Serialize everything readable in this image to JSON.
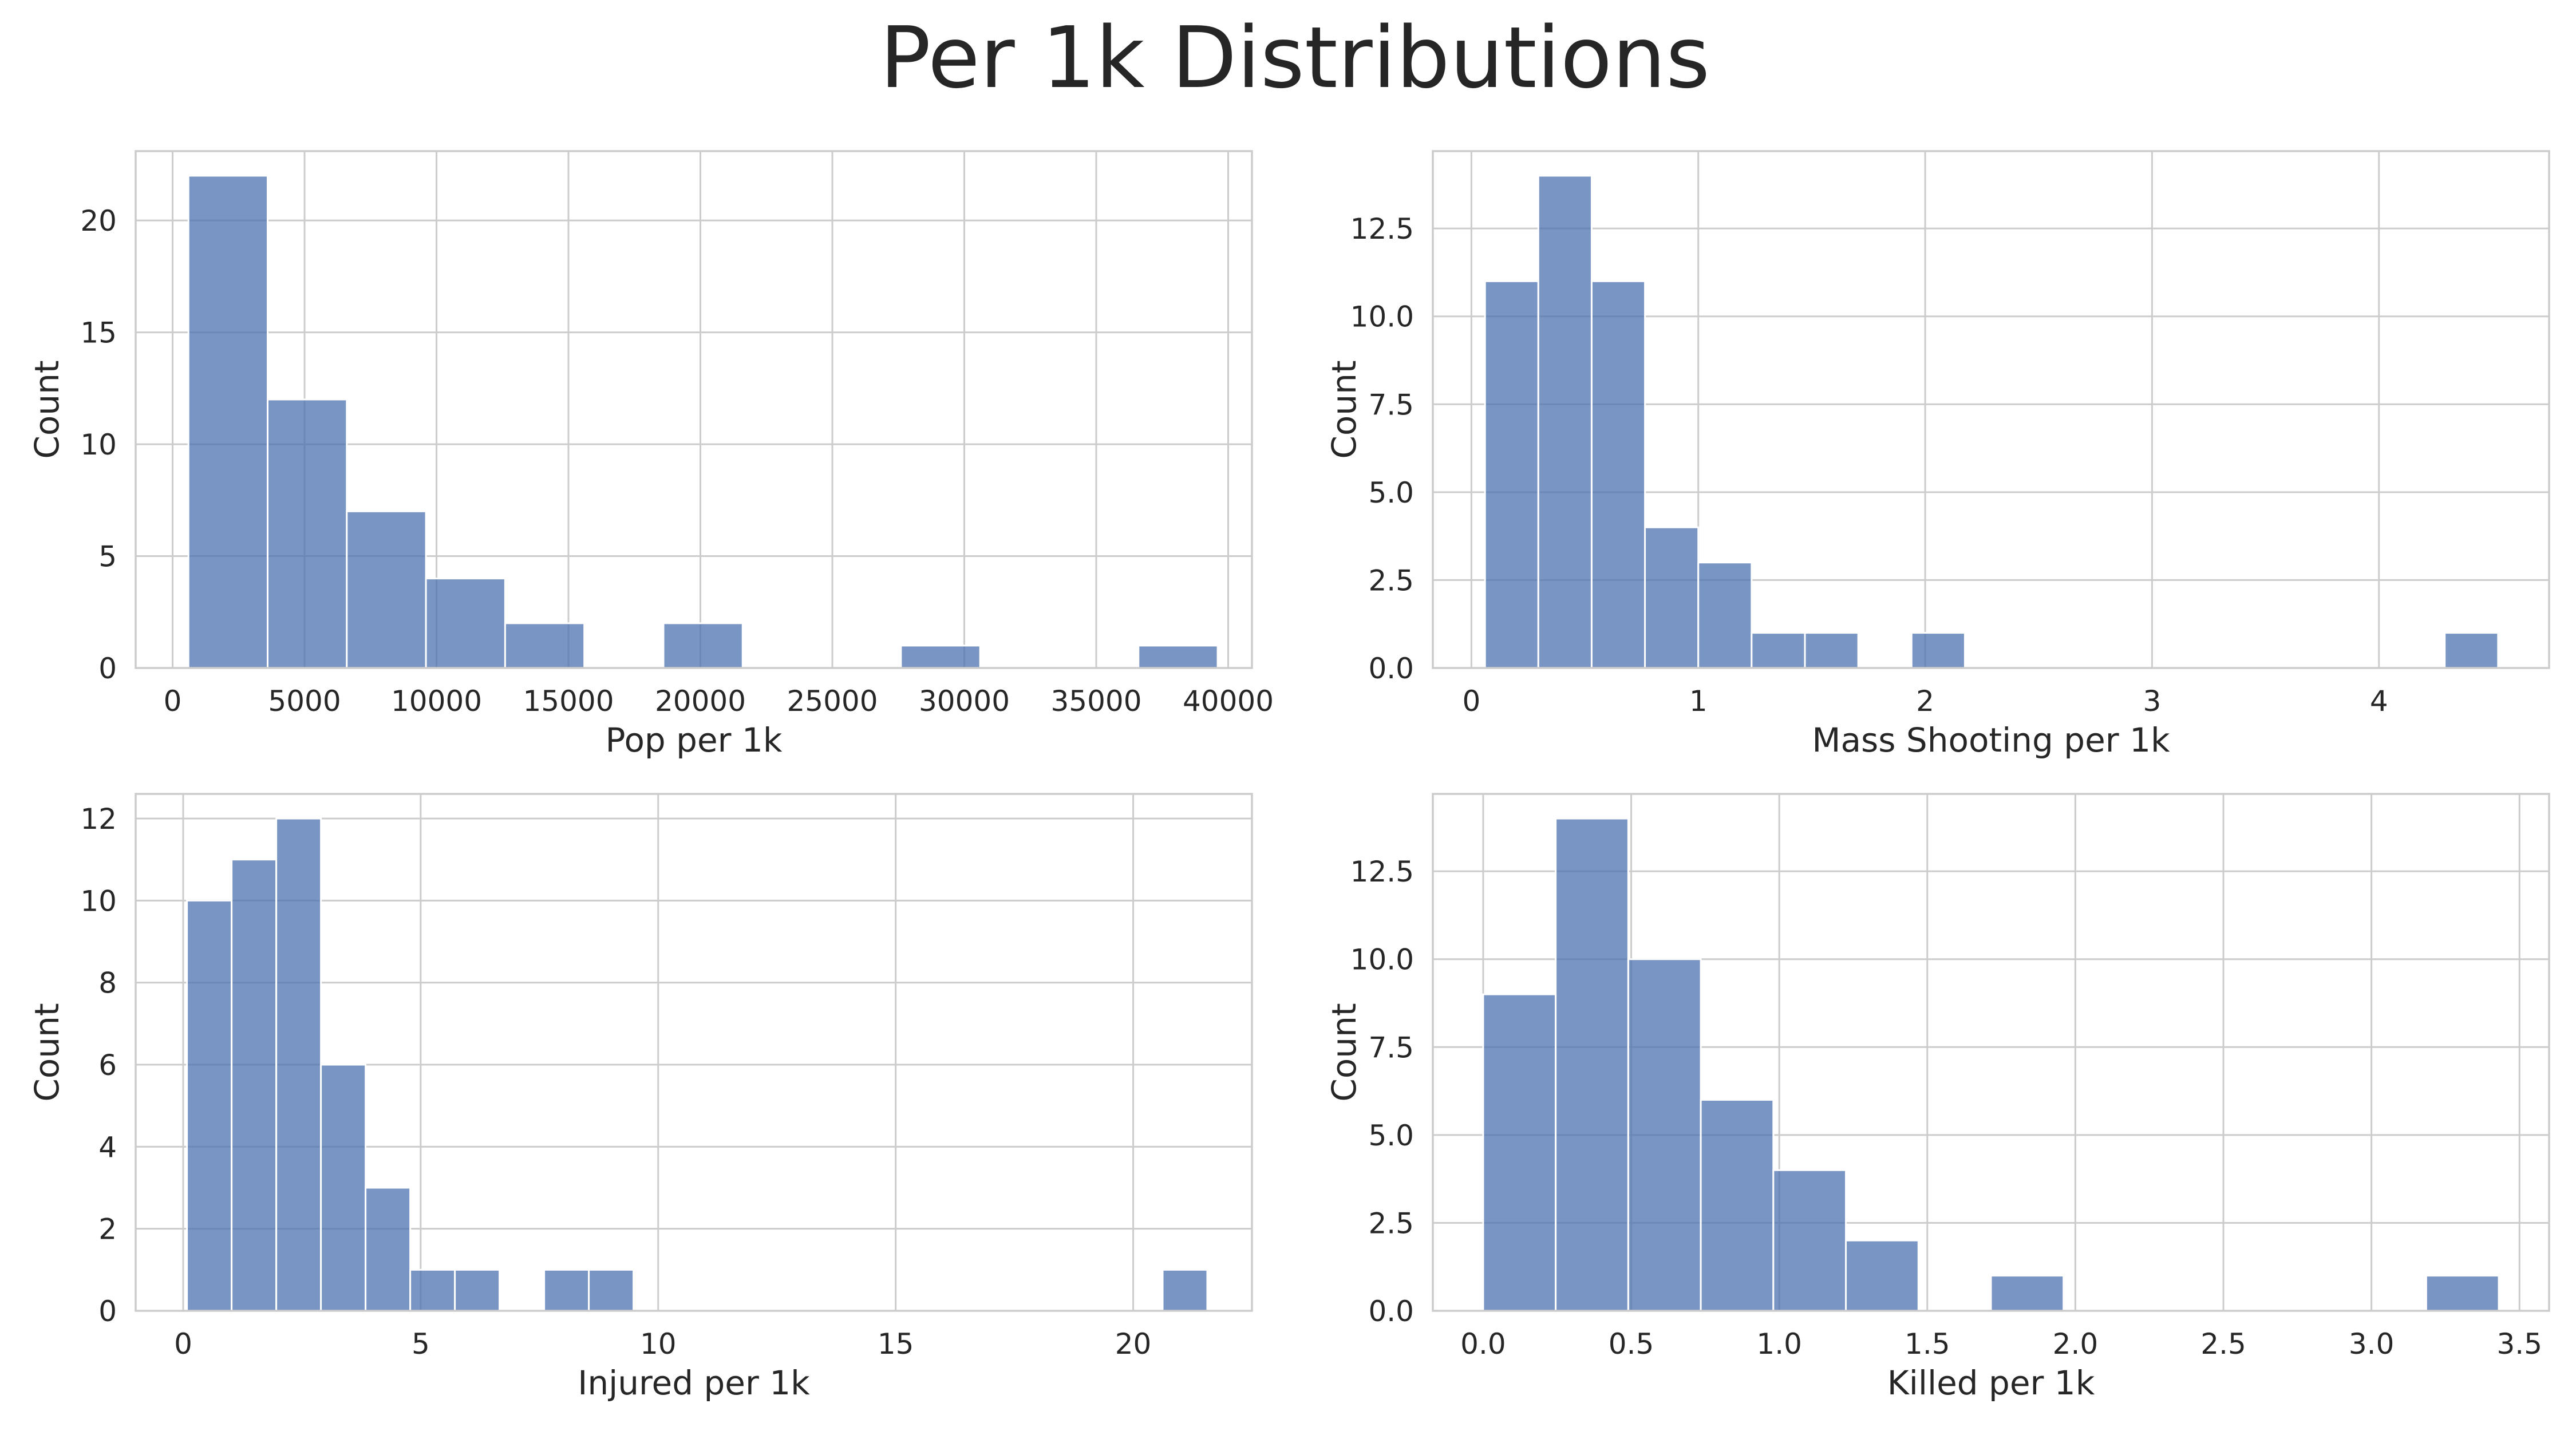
{
  "figure_title": "Per 1k Distributions",
  "colors": {
    "bar": "#4c72b0",
    "grid": "#cccccc",
    "spine": "#cccccc",
    "background": "#ffffff",
    "text": "#262626"
  },
  "chart_data": [
    {
      "type": "bar",
      "name": "pop-per-1k",
      "title": "",
      "xlabel": "Pop per 1k",
      "ylabel": "Count",
      "xlim": [
        -1400,
        40900
      ],
      "ylim": [
        0,
        23.1
      ],
      "xticks": [
        0,
        5000,
        10000,
        15000,
        20000,
        25000,
        30000,
        35000,
        40000
      ],
      "xtick_labels": [
        "0",
        "5000",
        "10000",
        "15000",
        "20000",
        "25000",
        "30000",
        "35000",
        "40000"
      ],
      "yticks": [
        0,
        5,
        10,
        15,
        20
      ],
      "ytick_labels": [
        "0",
        "5",
        "10",
        "15",
        "20"
      ],
      "bins": [
        {
          "x0": 600,
          "x1": 3600,
          "count": 22
        },
        {
          "x0": 3600,
          "x1": 6600,
          "count": 12
        },
        {
          "x0": 6600,
          "x1": 9600,
          "count": 7
        },
        {
          "x0": 9600,
          "x1": 12600,
          "count": 4
        },
        {
          "x0": 12600,
          "x1": 15600,
          "count": 2
        },
        {
          "x0": 15600,
          "x1": 18600,
          "count": 0
        },
        {
          "x0": 18600,
          "x1": 21600,
          "count": 2
        },
        {
          "x0": 21600,
          "x1": 24600,
          "count": 0
        },
        {
          "x0": 24600,
          "x1": 27600,
          "count": 0
        },
        {
          "x0": 27600,
          "x1": 30600,
          "count": 1
        },
        {
          "x0": 30600,
          "x1": 33600,
          "count": 0
        },
        {
          "x0": 33600,
          "x1": 36600,
          "count": 0
        },
        {
          "x0": 36600,
          "x1": 39600,
          "count": 1
        }
      ]
    },
    {
      "type": "bar",
      "name": "mass-shooting-per-1k",
      "title": "",
      "xlabel": "Mass Shooting per 1k",
      "ylabel": "Count",
      "xlim": [
        -0.17,
        4.75
      ],
      "ylim": [
        0,
        14.7
      ],
      "xticks": [
        0,
        1,
        2,
        3,
        4
      ],
      "xtick_labels": [
        "0",
        "1",
        "2",
        "3",
        "4"
      ],
      "yticks": [
        0,
        2.5,
        5,
        7.5,
        10,
        12.5
      ],
      "ytick_labels": [
        "0.0",
        "2.5",
        "5.0",
        "7.5",
        "10.0",
        "12.5"
      ],
      "bins": [
        {
          "x0": 0.06,
          "x1": 0.295,
          "count": 11
        },
        {
          "x0": 0.295,
          "x1": 0.53,
          "count": 14
        },
        {
          "x0": 0.53,
          "x1": 0.765,
          "count": 11
        },
        {
          "x0": 0.765,
          "x1": 1.0,
          "count": 4
        },
        {
          "x0": 1.0,
          "x1": 1.235,
          "count": 3
        },
        {
          "x0": 1.235,
          "x1": 1.47,
          "count": 1
        },
        {
          "x0": 1.47,
          "x1": 1.705,
          "count": 1
        },
        {
          "x0": 1.705,
          "x1": 1.94,
          "count": 0
        },
        {
          "x0": 1.94,
          "x1": 2.175,
          "count": 1
        },
        {
          "x0": 2.175,
          "x1": 2.41,
          "count": 0
        },
        {
          "x0": 2.41,
          "x1": 2.645,
          "count": 0
        },
        {
          "x0": 2.645,
          "x1": 2.88,
          "count": 0
        },
        {
          "x0": 2.88,
          "x1": 3.115,
          "count": 0
        },
        {
          "x0": 3.115,
          "x1": 3.35,
          "count": 0
        },
        {
          "x0": 3.35,
          "x1": 3.585,
          "count": 0
        },
        {
          "x0": 3.585,
          "x1": 3.82,
          "count": 0
        },
        {
          "x0": 3.82,
          "x1": 4.055,
          "count": 0
        },
        {
          "x0": 4.055,
          "x1": 4.29,
          "count": 0
        },
        {
          "x0": 4.29,
          "x1": 4.525,
          "count": 1
        }
      ]
    },
    {
      "type": "bar",
      "name": "injured-per-1k",
      "title": "",
      "xlabel": "Injured per 1k",
      "ylabel": "Count",
      "xlim": [
        -1.0,
        22.5
      ],
      "ylim": [
        0,
        12.6
      ],
      "xticks": [
        0,
        5,
        10,
        15,
        20
      ],
      "xtick_labels": [
        "0",
        "5",
        "10",
        "15",
        "20"
      ],
      "yticks": [
        0,
        2,
        4,
        6,
        8,
        10,
        12
      ],
      "ytick_labels": [
        "0",
        "2",
        "4",
        "6",
        "8",
        "10",
        "12"
      ],
      "bins": [
        {
          "x0": 0.08,
          "x1": 1.02,
          "count": 10
        },
        {
          "x0": 1.02,
          "x1": 1.96,
          "count": 11
        },
        {
          "x0": 1.96,
          "x1": 2.9,
          "count": 12
        },
        {
          "x0": 2.9,
          "x1": 3.84,
          "count": 6
        },
        {
          "x0": 3.84,
          "x1": 4.78,
          "count": 3
        },
        {
          "x0": 4.78,
          "x1": 5.72,
          "count": 1
        },
        {
          "x0": 5.72,
          "x1": 6.66,
          "count": 1
        },
        {
          "x0": 6.66,
          "x1": 7.6,
          "count": 0
        },
        {
          "x0": 7.6,
          "x1": 8.54,
          "count": 1
        },
        {
          "x0": 8.54,
          "x1": 9.48,
          "count": 1
        },
        {
          "x0": 20.62,
          "x1": 21.56,
          "count": 1
        }
      ]
    },
    {
      "type": "bar",
      "name": "killed-per-1k",
      "title": "",
      "xlabel": "Killed per 1k",
      "ylabel": "Count",
      "xlim": [
        -0.17,
        3.6
      ],
      "ylim": [
        0,
        14.7
      ],
      "xticks": [
        0,
        0.5,
        1,
        1.5,
        2,
        2.5,
        3,
        3.5
      ],
      "xtick_labels": [
        "0.0",
        "0.5",
        "1.0",
        "1.5",
        "2.0",
        "2.5",
        "3.0",
        "3.5"
      ],
      "yticks": [
        0,
        2.5,
        5,
        7.5,
        10,
        12.5
      ],
      "ytick_labels": [
        "0.0",
        "2.5",
        "5.0",
        "7.5",
        "10.0",
        "12.5"
      ],
      "bins": [
        {
          "x0": 0.0,
          "x1": 0.245,
          "count": 9
        },
        {
          "x0": 0.245,
          "x1": 0.49,
          "count": 14
        },
        {
          "x0": 0.49,
          "x1": 0.735,
          "count": 10
        },
        {
          "x0": 0.735,
          "x1": 0.98,
          "count": 6
        },
        {
          "x0": 0.98,
          "x1": 1.225,
          "count": 4
        },
        {
          "x0": 1.225,
          "x1": 1.47,
          "count": 2
        },
        {
          "x0": 1.47,
          "x1": 1.715,
          "count": 0
        },
        {
          "x0": 1.715,
          "x1": 1.96,
          "count": 1
        },
        {
          "x0": 1.96,
          "x1": 2.205,
          "count": 0
        },
        {
          "x0": 2.205,
          "x1": 2.45,
          "count": 0
        },
        {
          "x0": 2.45,
          "x1": 2.695,
          "count": 0
        },
        {
          "x0": 2.695,
          "x1": 2.94,
          "count": 0
        },
        {
          "x0": 2.94,
          "x1": 3.185,
          "count": 0
        },
        {
          "x0": 3.185,
          "x1": 3.43,
          "count": 1
        }
      ]
    }
  ]
}
